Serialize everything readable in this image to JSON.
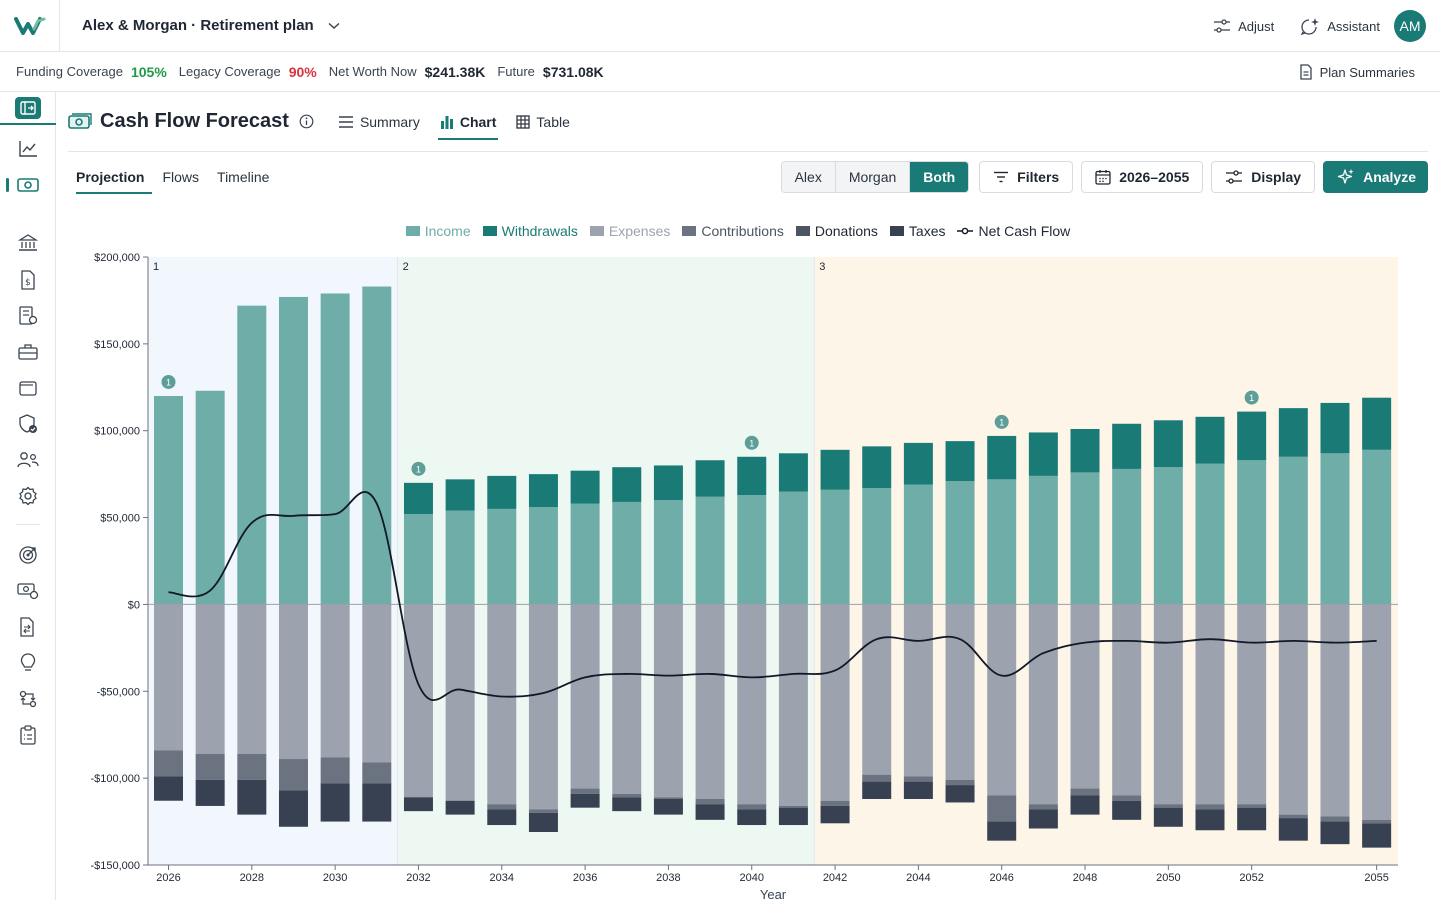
{
  "app": {
    "plan_title": "Alex & Morgan · Retirement plan",
    "actions": [
      {
        "label": "Adjust",
        "icon": "sliders-icon"
      },
      {
        "label": "Assistant",
        "icon": "sparkle-chat-icon"
      }
    ],
    "avatar_initials": "AM",
    "brand_color": "#1a7a75"
  },
  "metrics": {
    "funding_label": "Funding Coverage",
    "funding_value": "105%",
    "legacy_label": "Legacy Coverage",
    "legacy_value": "90%",
    "networth_label": "Net Worth Now",
    "networth_value": "$241.38K",
    "future_label": "Future",
    "future_value": "$731.08K",
    "plan_summaries": "Plan Summaries"
  },
  "sidebar": {
    "icons": [
      "collapse-panel-icon",
      "trending-chart-icon",
      "cash-flow-icon",
      "bank-icon",
      "document-dollar-icon",
      "statement-icon",
      "briefcase-icon",
      "wallet-icon",
      "shield-check-icon",
      "people-icon",
      "gear-icon",
      "target-icon",
      "cash-settings-icon",
      "document-transfer-icon",
      "lightbulb-icon",
      "transfer-icon",
      "clipboard-icon"
    ]
  },
  "header": {
    "title": "Cash Flow Forecast",
    "view_tabs": [
      {
        "label": "Summary",
        "icon": "list-icon",
        "active": false
      },
      {
        "label": "Chart",
        "icon": "bar-chart-icon",
        "active": true
      },
      {
        "label": "Table",
        "icon": "grid-icon",
        "active": false
      }
    ]
  },
  "subtabs": [
    {
      "label": "Projection",
      "active": true
    },
    {
      "label": "Flows",
      "active": false
    },
    {
      "label": "Timeline",
      "active": false
    }
  ],
  "controls": {
    "people": [
      {
        "label": "Alex",
        "active": false
      },
      {
        "label": "Morgan",
        "active": false
      },
      {
        "label": "Both",
        "active": true
      }
    ],
    "filters_label": "Filters",
    "range_label": "2026–2055",
    "display_label": "Display",
    "analyze_label": "Analyze"
  },
  "chart_data": {
    "type": "bar",
    "xlabel": "Year",
    "ylabel": "",
    "ylim": [
      -150000,
      200000
    ],
    "yticks": [
      200000,
      150000,
      100000,
      50000,
      0,
      -50000,
      -100000,
      -150000
    ],
    "ytick_labels": [
      "$200,000",
      "$150,000",
      "$100,000",
      "$50,000",
      "$0",
      "-$50,000",
      "-$100,000",
      "-$150,000"
    ],
    "xtick_labels": [
      "2026",
      "2028",
      "2030",
      "2032",
      "2034",
      "2036",
      "2038",
      "2040",
      "2042",
      "2044",
      "2046",
      "2048",
      "2050",
      "2052",
      "2055"
    ],
    "x": [
      2026,
      2027,
      2028,
      2029,
      2030,
      2031,
      2032,
      2033,
      2034,
      2035,
      2036,
      2037,
      2038,
      2039,
      2040,
      2041,
      2042,
      2043,
      2044,
      2045,
      2046,
      2047,
      2048,
      2049,
      2050,
      2051,
      2052,
      2053,
      2054,
      2055
    ],
    "legend": [
      "Income",
      "Withdrawals",
      "Expenses",
      "Contributions",
      "Donations",
      "Taxes",
      "Net Cash Flow"
    ],
    "colors": {
      "income": "#6fada8",
      "withdrawals": "#1a7a75",
      "expenses": "#9ca3af",
      "contributions": "#6b7280",
      "donations": "#4b5563",
      "taxes": "#374151",
      "net": "#111827",
      "phase1": "#f2f6fd",
      "phase2": "#eef8f3",
      "phase3": "#fdf6e8"
    },
    "phases": [
      {
        "label": "1",
        "start": 2026,
        "end": 2031
      },
      {
        "label": "2",
        "start": 2032,
        "end": 2041
      },
      {
        "label": "3",
        "start": 2042,
        "end": 2055
      }
    ],
    "income": [
      120000,
      123000,
      172000,
      177000,
      179000,
      183000,
      52000,
      54000,
      55000,
      56000,
      58000,
      59000,
      60000,
      62000,
      63000,
      65000,
      66000,
      67000,
      69000,
      71000,
      72000,
      74000,
      76000,
      78000,
      79000,
      81000,
      83000,
      85000,
      87000,
      89000
    ],
    "withdrawals": [
      0,
      0,
      0,
      0,
      0,
      0,
      18000,
      18000,
      19000,
      19000,
      19000,
      20000,
      20000,
      21000,
      22000,
      22000,
      23000,
      24000,
      24000,
      23000,
      25000,
      25000,
      25000,
      26000,
      27000,
      27000,
      28000,
      28000,
      29000,
      30000
    ],
    "expenses": [
      -84000,
      -86000,
      -86000,
      -89000,
      -88000,
      -91000,
      -111000,
      -113000,
      -115000,
      -118000,
      -106000,
      -109000,
      -111000,
      -112000,
      -115000,
      -116000,
      -113000,
      -98000,
      -99000,
      -101000,
      -110000,
      -115000,
      -106000,
      -110000,
      -115000,
      -115000,
      -115000,
      -121000,
      -122000,
      -124000
    ],
    "contributions": [
      -15000,
      -15000,
      -15000,
      -18000,
      -15000,
      -12000,
      0,
      0,
      -3000,
      -2000,
      -3000,
      -2000,
      -1000,
      -3000,
      -3000,
      -1000,
      -3000,
      -4000,
      -3000,
      -3000,
      -15000,
      -3000,
      -4000,
      -3000,
      -2000,
      -3000,
      -2000,
      -2000,
      -3000,
      -2000
    ],
    "donations": [
      0,
      0,
      0,
      0,
      0,
      0,
      0,
      0,
      0,
      0,
      0,
      0,
      0,
      0,
      0,
      0,
      0,
      0,
      0,
      0,
      0,
      0,
      0,
      0,
      0,
      0,
      0,
      0,
      0,
      0
    ],
    "taxes": [
      -14000,
      -15000,
      -20000,
      -21000,
      -22000,
      -22000,
      -8000,
      -8000,
      -9000,
      -11000,
      -8000,
      -8000,
      -9000,
      -9000,
      -9000,
      -10000,
      -10000,
      -10000,
      -10000,
      -10000,
      -11000,
      -11000,
      -11000,
      -11000,
      -11000,
      -12000,
      -13000,
      -13000,
      -13000,
      -14000
    ],
    "net_cash_flow": [
      7000,
      8000,
      47000,
      51000,
      52000,
      58000,
      -46000,
      -49000,
      -53000,
      -51000,
      -42000,
      -40000,
      -41000,
      -40000,
      -42000,
      -40000,
      -38000,
      -20000,
      -21000,
      -20000,
      -41000,
      -28000,
      -22000,
      -21000,
      -22000,
      -20000,
      -22000,
      -21000,
      -22000,
      -21000
    ],
    "markers": [
      {
        "x": 2026,
        "label": "1"
      },
      {
        "x": 2032,
        "label": "1"
      },
      {
        "x": 2040,
        "label": "1"
      },
      {
        "x": 2046,
        "label": "1"
      },
      {
        "x": 2052,
        "label": "1"
      }
    ]
  }
}
